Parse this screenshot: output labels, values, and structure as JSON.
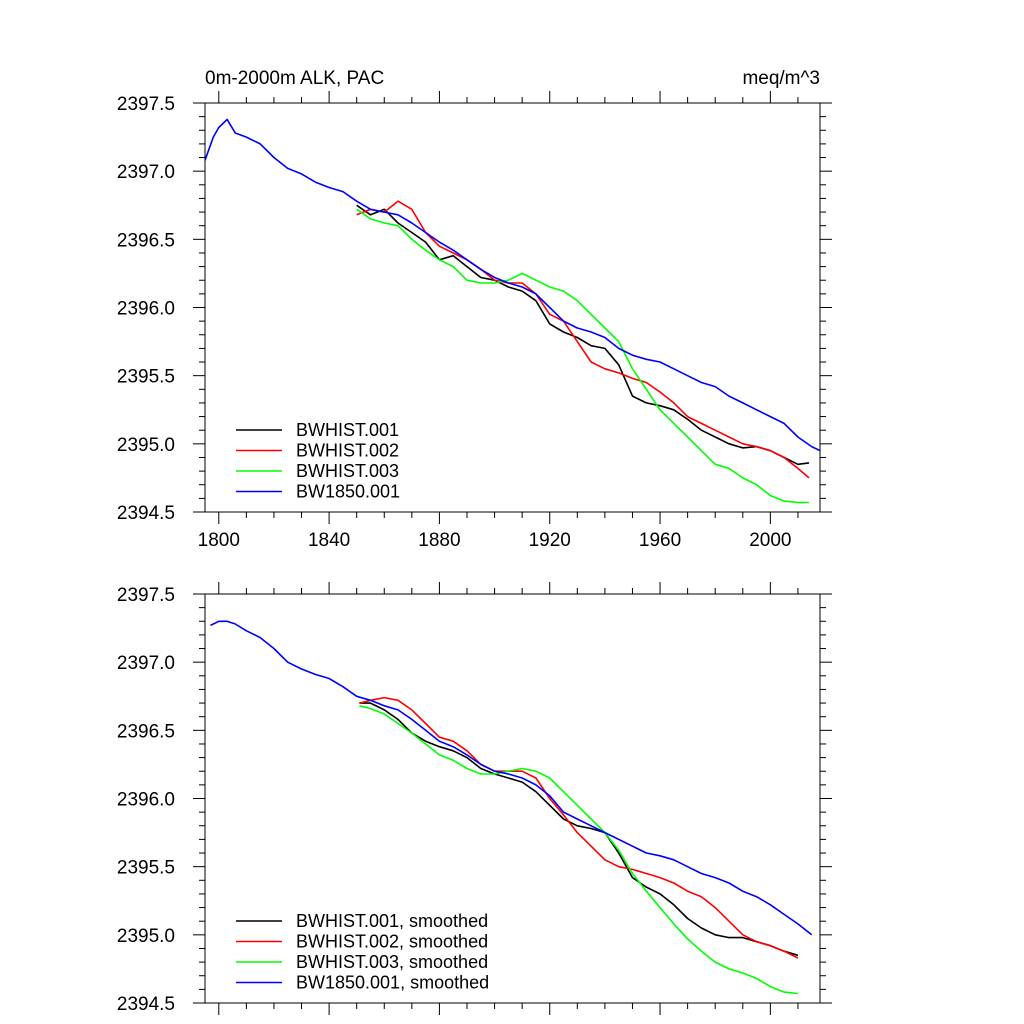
{
  "figure": {
    "title_left": "0m-2000m ALK, PAC",
    "title_right": "meq/m^3"
  },
  "colors": {
    "BWHIST.001": "#000000",
    "BWHIST.002": "#ff0000",
    "BWHIST.003": "#00ff00",
    "BW1850.001": "#0000ff"
  },
  "chart_data": [
    {
      "type": "line",
      "title": "0m-2000m ALK, PAC",
      "units": "meq/m^3",
      "xlim": [
        1795,
        2018
      ],
      "ylim": [
        2394.5,
        2397.5
      ],
      "xticks": [
        1800,
        1840,
        1880,
        1920,
        1960,
        2000
      ],
      "xtick_labels": [
        "1800",
        "1840",
        "1880",
        "1920",
        "1960",
        "2000"
      ],
      "yticks": [
        2394.5,
        2395.0,
        2395.5,
        2396.0,
        2396.5,
        2397.0,
        2397.5
      ],
      "ytick_labels": [
        "2394.5",
        "2395.0",
        "2395.5",
        "2396.0",
        "2396.5",
        "2397.0",
        "2397.5"
      ],
      "legend_position": "bottom-left",
      "series": [
        {
          "name": "BWHIST.001",
          "x": [
            1850,
            1855,
            1860,
            1865,
            1870,
            1875,
            1880,
            1885,
            1890,
            1895,
            1900,
            1905,
            1910,
            1915,
            1920,
            1925,
            1930,
            1935,
            1940,
            1945,
            1950,
            1955,
            1960,
            1965,
            1970,
            1975,
            1980,
            1985,
            1990,
            1995,
            2000,
            2005,
            2010,
            2014
          ],
          "y": [
            2396.75,
            2396.68,
            2396.72,
            2396.62,
            2396.55,
            2396.48,
            2396.35,
            2396.38,
            2396.3,
            2396.22,
            2396.2,
            2396.15,
            2396.12,
            2396.05,
            2395.88,
            2395.82,
            2395.78,
            2395.72,
            2395.7,
            2395.58,
            2395.35,
            2395.3,
            2395.28,
            2395.25,
            2395.18,
            2395.1,
            2395.05,
            2395.0,
            2394.97,
            2394.98,
            2394.95,
            2394.9,
            2394.85,
            2394.86
          ]
        },
        {
          "name": "BWHIST.002",
          "x": [
            1850,
            1855,
            1860,
            1865,
            1870,
            1875,
            1880,
            1885,
            1890,
            1895,
            1900,
            1905,
            1910,
            1915,
            1920,
            1925,
            1930,
            1935,
            1940,
            1945,
            1950,
            1955,
            1960,
            1965,
            1970,
            1975,
            1980,
            1985,
            1990,
            1995,
            2000,
            2005,
            2010,
            2014
          ],
          "y": [
            2396.68,
            2396.72,
            2396.7,
            2396.78,
            2396.72,
            2396.55,
            2396.45,
            2396.4,
            2396.35,
            2396.28,
            2396.2,
            2396.18,
            2396.18,
            2396.1,
            2395.95,
            2395.9,
            2395.75,
            2395.6,
            2395.55,
            2395.52,
            2395.48,
            2395.45,
            2395.38,
            2395.3,
            2395.2,
            2395.15,
            2395.1,
            2395.05,
            2395.0,
            2394.98,
            2394.95,
            2394.9,
            2394.82,
            2394.75
          ]
        },
        {
          "name": "BWHIST.003",
          "x": [
            1850,
            1855,
            1860,
            1865,
            1870,
            1875,
            1880,
            1885,
            1890,
            1895,
            1900,
            1905,
            1910,
            1915,
            1920,
            1925,
            1930,
            1935,
            1940,
            1945,
            1950,
            1955,
            1960,
            1965,
            1970,
            1975,
            1980,
            1985,
            1990,
            1995,
            2000,
            2005,
            2010,
            2014
          ],
          "y": [
            2396.72,
            2396.65,
            2396.62,
            2396.6,
            2396.5,
            2396.42,
            2396.35,
            2396.3,
            2396.2,
            2396.18,
            2396.18,
            2396.2,
            2396.25,
            2396.2,
            2396.15,
            2396.12,
            2396.05,
            2395.95,
            2395.85,
            2395.75,
            2395.55,
            2395.4,
            2395.25,
            2395.15,
            2395.05,
            2394.95,
            2394.85,
            2394.82,
            2394.75,
            2394.7,
            2394.62,
            2394.58,
            2394.57,
            2394.57
          ]
        },
        {
          "name": "BW1850.001",
          "x": [
            1795,
            1798,
            1800,
            1803,
            1806,
            1810,
            1815,
            1820,
            1825,
            1830,
            1835,
            1840,
            1845,
            1850,
            1855,
            1860,
            1865,
            1870,
            1875,
            1880,
            1885,
            1890,
            1895,
            1900,
            1905,
            1910,
            1915,
            1920,
            1925,
            1930,
            1935,
            1940,
            1945,
            1950,
            1955,
            1960,
            1965,
            1970,
            1975,
            1980,
            1985,
            1990,
            1995,
            2000,
            2005,
            2010,
            2015,
            2018
          ],
          "y": [
            2397.08,
            2397.25,
            2397.32,
            2397.38,
            2397.28,
            2397.25,
            2397.2,
            2397.1,
            2397.02,
            2396.98,
            2396.92,
            2396.88,
            2396.85,
            2396.78,
            2396.72,
            2396.7,
            2396.68,
            2396.62,
            2396.55,
            2396.48,
            2396.42,
            2396.35,
            2396.28,
            2396.22,
            2396.18,
            2396.15,
            2396.1,
            2396.0,
            2395.9,
            2395.85,
            2395.82,
            2395.78,
            2395.7,
            2395.65,
            2395.62,
            2395.6,
            2395.55,
            2395.5,
            2395.45,
            2395.42,
            2395.35,
            2395.3,
            2395.25,
            2395.2,
            2395.15,
            2395.05,
            2394.98,
            2394.95
          ]
        }
      ]
    },
    {
      "type": "line",
      "xlim": [
        1795,
        2018
      ],
      "ylim": [
        2394.5,
        2397.5
      ],
      "xticks": [
        1800,
        1840,
        1880,
        1920,
        1960,
        2000
      ],
      "yticks": [
        2394.5,
        2395.0,
        2395.5,
        2396.0,
        2396.5,
        2397.0,
        2397.5
      ],
      "ytick_labels": [
        "2394.5",
        "2395.0",
        "2395.5",
        "2396.0",
        "2396.5",
        "2397.0",
        "2397.5"
      ],
      "legend_position": "bottom-left",
      "series": [
        {
          "name": "BWHIST.001, smoothed",
          "x": [
            1851,
            1855,
            1860,
            1865,
            1870,
            1875,
            1880,
            1885,
            1890,
            1895,
            1900,
            1905,
            1910,
            1915,
            1920,
            1925,
            1930,
            1935,
            1940,
            1945,
            1950,
            1955,
            1960,
            1965,
            1970,
            1975,
            1980,
            1985,
            1990,
            1995,
            2000,
            2005,
            2010
          ],
          "y": [
            2396.7,
            2396.7,
            2396.65,
            2396.58,
            2396.48,
            2396.42,
            2396.38,
            2396.35,
            2396.3,
            2396.22,
            2396.18,
            2396.15,
            2396.12,
            2396.05,
            2395.95,
            2395.85,
            2395.8,
            2395.78,
            2395.75,
            2395.6,
            2395.42,
            2395.35,
            2395.3,
            2395.22,
            2395.12,
            2395.05,
            2395.0,
            2394.98,
            2394.98,
            2394.95,
            2394.92,
            2394.88,
            2394.85
          ]
        },
        {
          "name": "BWHIST.002, smoothed",
          "x": [
            1851,
            1855,
            1860,
            1865,
            1870,
            1875,
            1880,
            1885,
            1890,
            1895,
            1900,
            1905,
            1910,
            1915,
            1920,
            1925,
            1930,
            1935,
            1940,
            1945,
            1950,
            1955,
            1960,
            1965,
            1970,
            1975,
            1980,
            1985,
            1990,
            1995,
            2000,
            2005,
            2010
          ],
          "y": [
            2396.7,
            2396.72,
            2396.74,
            2396.72,
            2396.65,
            2396.55,
            2396.45,
            2396.42,
            2396.35,
            2396.25,
            2396.2,
            2396.2,
            2396.2,
            2396.15,
            2396.0,
            2395.88,
            2395.75,
            2395.65,
            2395.55,
            2395.5,
            2395.48,
            2395.45,
            2395.42,
            2395.38,
            2395.32,
            2395.28,
            2395.2,
            2395.1,
            2395.0,
            2394.95,
            2394.92,
            2394.88,
            2394.83
          ]
        },
        {
          "name": "BWHIST.003, smoothed",
          "x": [
            1851,
            1855,
            1860,
            1865,
            1870,
            1875,
            1880,
            1885,
            1890,
            1895,
            1900,
            1905,
            1910,
            1915,
            1920,
            1925,
            1930,
            1935,
            1940,
            1945,
            1950,
            1955,
            1960,
            1965,
            1970,
            1975,
            1980,
            1985,
            1990,
            1995,
            2000,
            2005,
            2010
          ],
          "y": [
            2396.68,
            2396.66,
            2396.62,
            2396.55,
            2396.48,
            2396.4,
            2396.32,
            2396.28,
            2396.22,
            2396.18,
            2396.18,
            2396.2,
            2396.22,
            2396.2,
            2396.15,
            2396.05,
            2395.95,
            2395.85,
            2395.75,
            2395.62,
            2395.45,
            2395.32,
            2395.2,
            2395.08,
            2394.97,
            2394.88,
            2394.8,
            2394.75,
            2394.72,
            2394.68,
            2394.62,
            2394.58,
            2394.57
          ]
        },
        {
          "name": "BW1850.001, smoothed",
          "x": [
            1797,
            1800,
            1803,
            1806,
            1810,
            1815,
            1820,
            1825,
            1830,
            1835,
            1840,
            1845,
            1850,
            1855,
            1860,
            1865,
            1870,
            1875,
            1880,
            1885,
            1890,
            1895,
            1900,
            1905,
            1910,
            1915,
            1920,
            1925,
            1930,
            1935,
            1940,
            1945,
            1950,
            1955,
            1960,
            1965,
            1970,
            1975,
            1980,
            1985,
            1990,
            1995,
            2000,
            2005,
            2010,
            2015
          ],
          "y": [
            2397.27,
            2397.3,
            2397.3,
            2397.28,
            2397.23,
            2397.18,
            2397.1,
            2397.0,
            2396.95,
            2396.91,
            2396.88,
            2396.82,
            2396.75,
            2396.72,
            2396.68,
            2396.65,
            2396.58,
            2396.5,
            2396.42,
            2396.38,
            2396.32,
            2396.25,
            2396.2,
            2396.18,
            2396.15,
            2396.1,
            2396.02,
            2395.9,
            2395.85,
            2395.8,
            2395.75,
            2395.7,
            2395.65,
            2395.6,
            2395.58,
            2395.55,
            2395.5,
            2395.45,
            2395.42,
            2395.38,
            2395.32,
            2395.28,
            2395.22,
            2395.15,
            2395.08,
            2395.0
          ]
        }
      ]
    }
  ]
}
